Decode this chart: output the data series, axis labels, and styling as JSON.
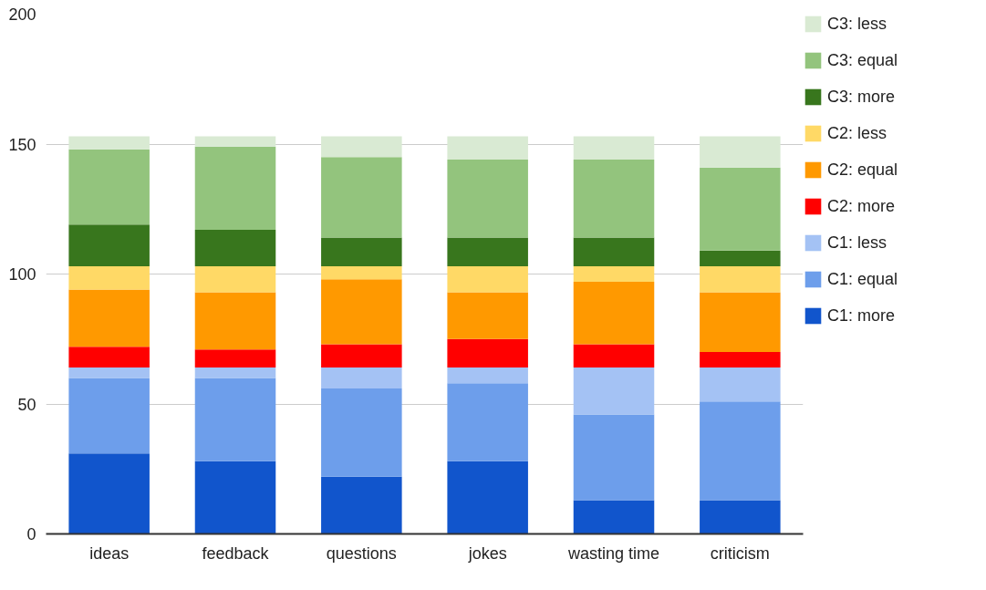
{
  "chart_data": {
    "type": "bar",
    "stacked": true,
    "categories": [
      "ideas",
      "feedback",
      "questions",
      "jokes",
      "wasting time",
      "criticism"
    ],
    "series": [
      {
        "name": "C1: more",
        "color": "#1155cc",
        "values": [
          31,
          28,
          22,
          28,
          13,
          13
        ]
      },
      {
        "name": "C1: equal",
        "color": "#6d9eeb",
        "values": [
          29,
          32,
          34,
          30,
          33,
          38
        ]
      },
      {
        "name": "C1: less",
        "color": "#a4c2f4",
        "values": [
          4,
          4,
          8,
          6,
          18,
          13
        ]
      },
      {
        "name": "C2: more",
        "color": "#ff0000",
        "values": [
          8,
          7,
          9,
          11,
          9,
          6
        ]
      },
      {
        "name": "C2: equal",
        "color": "#ff9900",
        "values": [
          22,
          22,
          25,
          18,
          24,
          23
        ]
      },
      {
        "name": "C2: less",
        "color": "#ffd966",
        "values": [
          9,
          10,
          5,
          10,
          6,
          10
        ]
      },
      {
        "name": "C3: more",
        "color": "#38761d",
        "values": [
          16,
          14,
          11,
          11,
          11,
          6
        ]
      },
      {
        "name": "C3: equal",
        "color": "#93c47d",
        "values": [
          29,
          32,
          31,
          30,
          30,
          32
        ]
      },
      {
        "name": "C3: less",
        "color": "#d9ead3",
        "values": [
          5,
          4,
          8,
          9,
          9,
          12
        ]
      }
    ],
    "ylim": [
      0,
      200
    ],
    "yticks": [
      0,
      50,
      100,
      150,
      200
    ],
    "grid": "y",
    "legend": "right"
  }
}
